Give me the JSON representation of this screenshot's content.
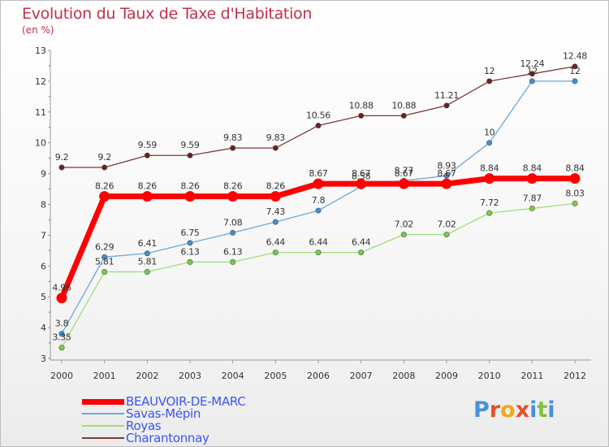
{
  "header": {
    "title": "Evolution du Taux de Taxe d'Habitation",
    "subtitle": "(en %)"
  },
  "logo": {
    "text": "Proxiti",
    "letter_colors": [
      "#4a90d9",
      "#e8502a",
      "#f2a81d",
      "#e8502a",
      "#4a90d9",
      "#7fc241",
      "#4a90d9"
    ]
  },
  "chart_data": {
    "type": "line",
    "x": [
      "2000",
      "2001",
      "2002",
      "2003",
      "2004",
      "2005",
      "2006",
      "2007",
      "2008",
      "2009",
      "2010",
      "2011",
      "2012"
    ],
    "ylim": [
      3,
      13
    ],
    "yticks": [
      "3",
      "4",
      "5",
      "6",
      "7",
      "8",
      "9",
      "10",
      "11",
      "12",
      "13"
    ],
    "grid": false,
    "legend_position": "bottom",
    "series": [
      {
        "name": "BEAUVOIR-DE-MARC",
        "color": "#ff0000",
        "marker_color": "#ff0000",
        "emphasis": true,
        "values": [
          4.96,
          8.26,
          8.26,
          8.26,
          8.26,
          8.26,
          8.67,
          8.67,
          8.67,
          8.67,
          8.84,
          8.84,
          8.84
        ],
        "labels": [
          "4.96",
          "8.26",
          "8.26",
          "8.26",
          "8.26",
          "8.26",
          "8.67",
          "8.67",
          "8.67",
          "8.67",
          "8.84",
          "8.84",
          "8.84"
        ]
      },
      {
        "name": "Savas-Mépin",
        "color": "#6ea7d6",
        "marker_color": "#3e8fd1",
        "values": [
          3.8,
          6.29,
          6.41,
          6.75,
          7.08,
          7.43,
          7.8,
          8.58,
          8.77,
          8.93,
          10,
          12,
          12
        ],
        "labels": [
          "3.8",
          "6.29",
          "6.41",
          "6.75",
          "7.08",
          "7.43",
          "7.8",
          "8.58",
          "8.77",
          "8.93",
          "10",
          "12",
          "12"
        ]
      },
      {
        "name": "Royas",
        "color": "#a3dc7b",
        "marker_color": "#78cf3c",
        "values": [
          3.35,
          5.81,
          5.81,
          6.13,
          6.13,
          6.44,
          6.44,
          6.44,
          7.02,
          7.02,
          7.72,
          7.87,
          8.03
        ],
        "labels": [
          "3.35",
          "5.81",
          "5.81",
          "6.13",
          "6.13",
          "6.44",
          "6.44",
          "6.44",
          "7.02",
          "7.02",
          "7.72",
          "7.87",
          "8.03"
        ]
      },
      {
        "name": "Charantonnay",
        "color": "#7a3a3a",
        "marker_color": "#6b1f1f",
        "values": [
          9.2,
          9.2,
          9.59,
          9.59,
          9.83,
          9.83,
          10.56,
          10.88,
          10.88,
          11.21,
          12,
          12.24,
          12.48
        ],
        "labels": [
          "9.2",
          "9.2",
          "9.59",
          "9.59",
          "9.83",
          "9.83",
          "10.56",
          "10.88",
          "10.88",
          "11.21",
          "12",
          "12.24",
          "12.48"
        ]
      }
    ]
  }
}
